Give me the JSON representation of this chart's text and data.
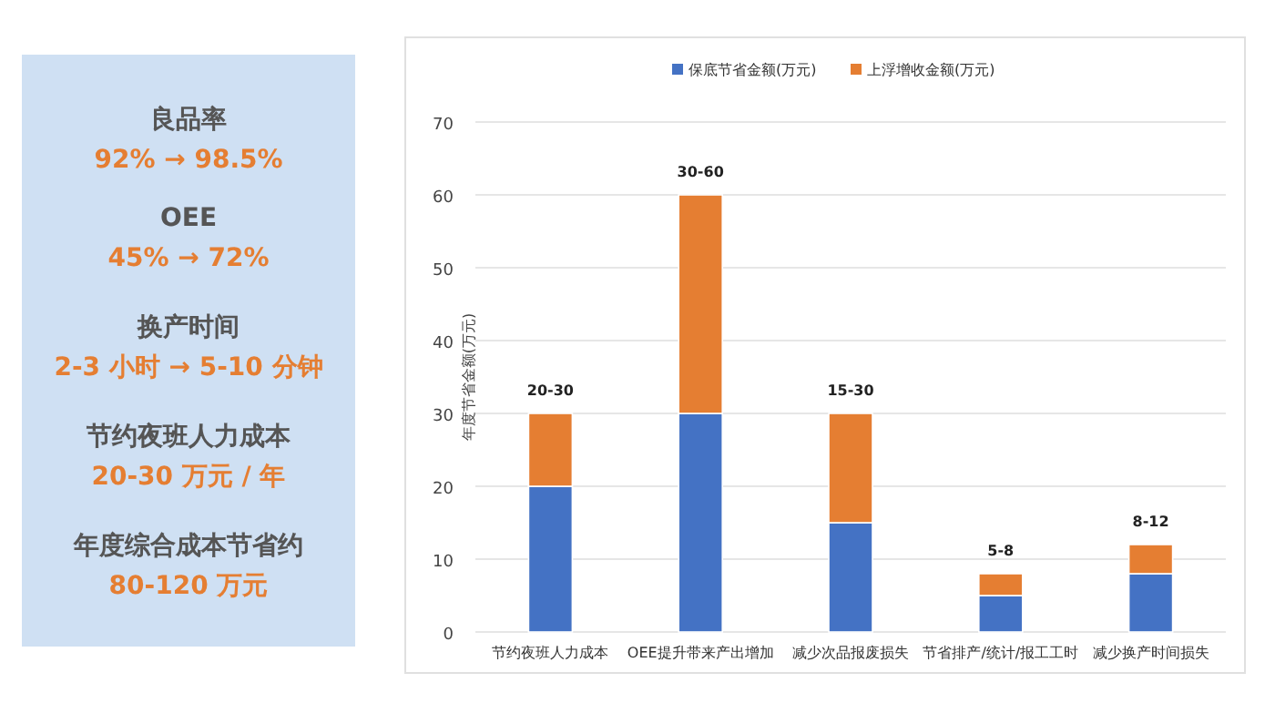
{
  "chart_data": [
    {
      "type": "other",
      "annotations": [
        "良品率",
        "92% → 98.5%",
        "OEE",
        "45% → 72%",
        "换产时间",
        "2-3 小时 → 5-10 分钟",
        "节约夜班人力成本",
        "20-30 万元 / 年",
        "年度综合成本节省约",
        "80-120 万元"
      ]
    },
    {
      "type": "bar",
      "stacked": true,
      "ylabel": "年度节省金额(万元)",
      "categories": [
        "节约夜班人力成本",
        "OEE提升带来产出增加",
        "减少次品报废损失",
        "节省排产/统计/报工工时",
        "减少换产时间损失"
      ],
      "series": [
        {
          "name": "保底节省金额(万元)",
          "color": "#4472c4",
          "values": [
            20,
            30,
            15,
            5,
            8
          ]
        },
        {
          "name": "上浮增收金额(万元)",
          "color": "#e57e32",
          "values": [
            10,
            30,
            15,
            3,
            4
          ]
        }
      ],
      "totals": [
        "20-30",
        "30-60",
        "15-30",
        "5-8",
        "8-12"
      ],
      "ylim": [
        0,
        70
      ],
      "yticks": [
        0,
        10,
        20,
        30,
        40,
        50,
        60,
        70
      ],
      "grid": "y",
      "legend": "top"
    }
  ]
}
